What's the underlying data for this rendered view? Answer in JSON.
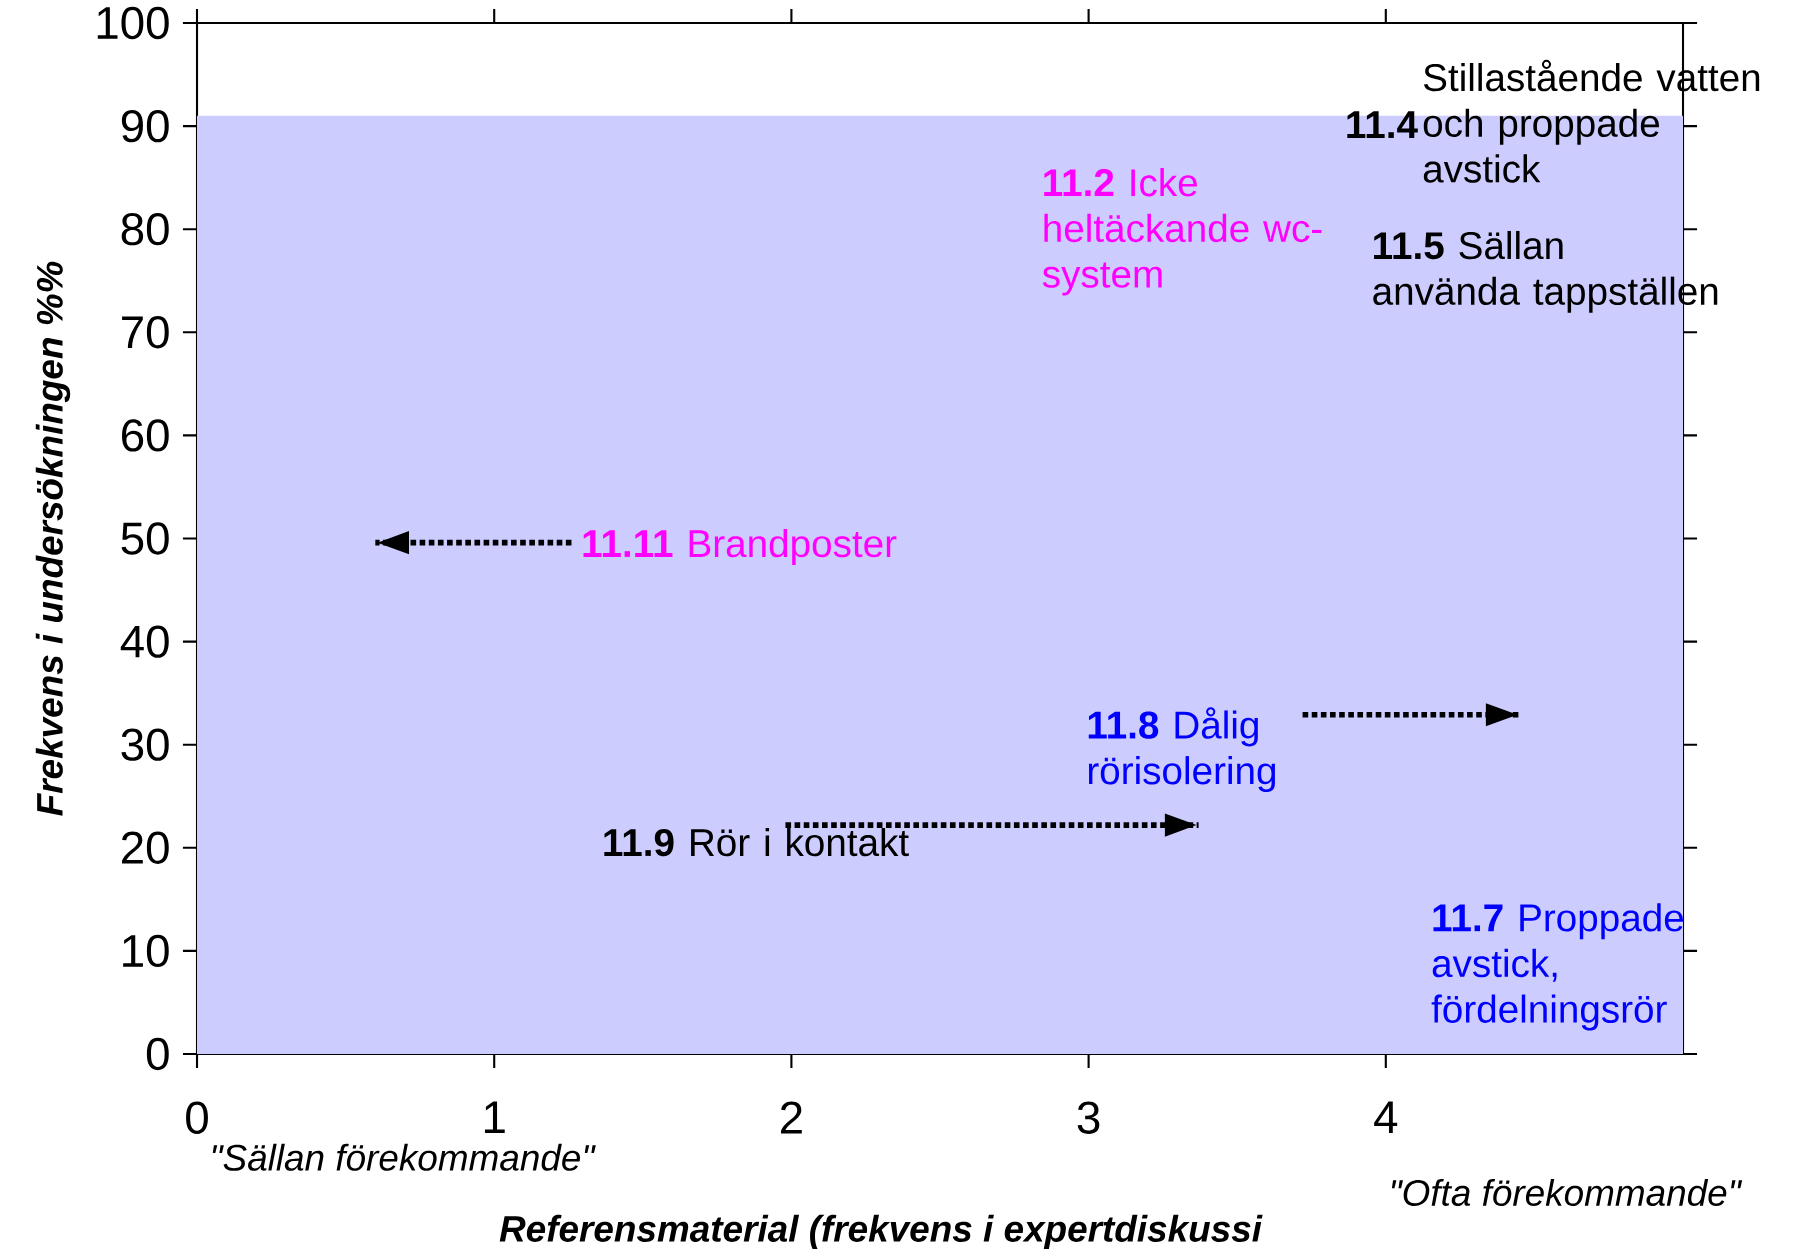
{
  "chart_data": {
    "type": "line",
    "xlabel": "Referensmaterial (frekvens i expertdiskussi",
    "ylabel": "Frekvens i undersökningen %%",
    "xlim": [
      0,
      5
    ],
    "ylim": [
      0,
      100
    ],
    "xticks": [
      0,
      1,
      2,
      3,
      4
    ],
    "yticks": [
      0,
      10,
      20,
      30,
      40,
      50,
      60,
      70,
      80,
      90,
      100
    ],
    "grid": false,
    "line_style": "dotted",
    "bands": [
      {
        "axis": "y",
        "from": 0,
        "to": 91,
        "color": "#ccccff"
      }
    ],
    "annotations": [
      "\"Sällan förekommande\"",
      "\"Ofta förekommande\"",
      "**11.11** Brandposter",
      "**11.2** Icke heltäckande wc-system",
      "**11.4**",
      "Stillastående vatten och proppade avstick",
      "**11.5** Sällan använda tappställen",
      "**11.8** Dålig rörisolering",
      "**11.9** Rör i kontakt",
      "**11.7** Proppade avstick, fördelningsrör"
    ],
    "series": [
      {
        "color": "#000000",
        "x": [
          1.26,
          0.6
        ],
        "values": [
          49.6,
          49.6
        ]
      },
      {
        "color": "#000000",
        "x": [
          1.98,
          3.37
        ],
        "values": [
          22.2,
          22.2
        ]
      },
      {
        "color": "#000000",
        "x": [
          3.72,
          4.45
        ],
        "values": [
          32.9,
          32.9
        ]
      }
    ]
  }
}
